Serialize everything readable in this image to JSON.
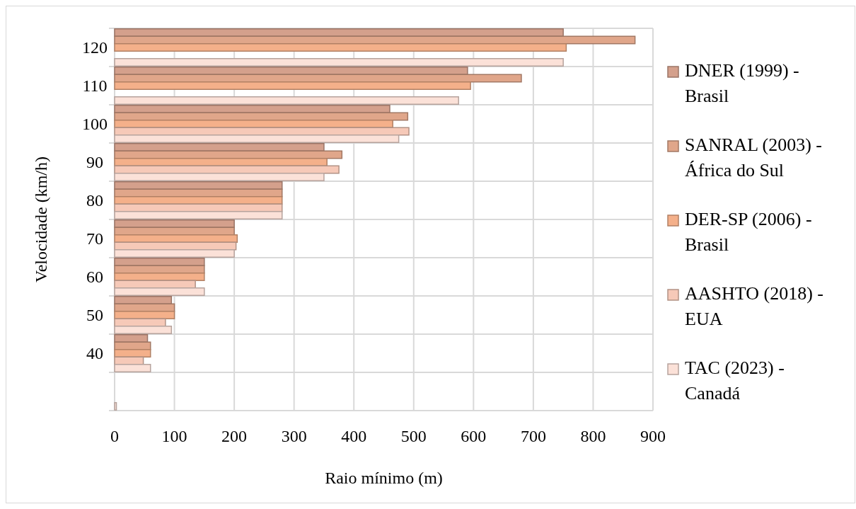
{
  "chart_data": {
    "type": "bar",
    "orientation": "horizontal",
    "xlabel": "Raio mínimo (m)",
    "ylabel": "Velocidade (km/h)",
    "categories": [
      "120",
      "110",
      "100",
      "90",
      "80",
      "70",
      "60",
      "50",
      "40",
      null
    ],
    "series": [
      {
        "name": "DNER (1999) - Brasil",
        "color": "#d4a08c",
        "values": [
          750,
          590,
          460,
          350,
          280,
          200,
          150,
          95,
          55,
          null
        ]
      },
      {
        "name": "SANRAL (2003) - África do Sul",
        "color": "#e0a68a",
        "values": [
          870,
          680,
          490,
          380,
          280,
          200,
          150,
          100,
          60,
          null
        ]
      },
      {
        "name": "DER-SP (2006) - Brasil",
        "color": "#f4b08a",
        "values": [
          755,
          595,
          465,
          355,
          280,
          205,
          150,
          100,
          60,
          null
        ]
      },
      {
        "name": "AASHTO (2018) - EUA",
        "color": "#f6c9b8",
        "values": [
          null,
          null,
          492,
          375,
          280,
          203,
          135,
          85,
          48,
          null
        ]
      },
      {
        "name": "TAC (2023) - Canadá",
        "color": "#fbe1d8",
        "values": [
          750,
          575,
          475,
          350,
          280,
          200,
          150,
          95,
          60,
          3
        ]
      }
    ],
    "xlim": [
      0,
      900
    ],
    "xticks": [
      0,
      100,
      200,
      300,
      400,
      500,
      600,
      700,
      800,
      900
    ],
    "grid": true,
    "legend": "right"
  }
}
